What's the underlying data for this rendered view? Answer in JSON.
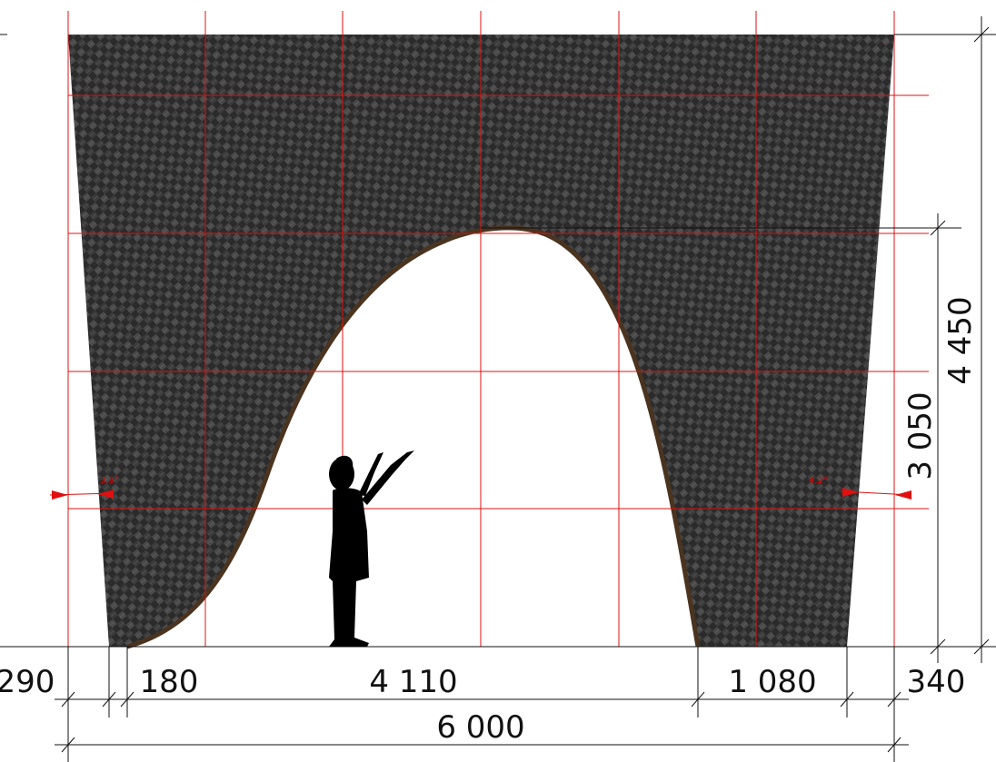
{
  "dimensions": {
    "left_offset": "290",
    "left_taper": "180",
    "opening_width": "4 110",
    "right_leg": "1 080",
    "right_offset": "340",
    "total_width": "6 000",
    "total_height": "4 450",
    "opening_height": "3 050"
  },
  "angles": {
    "left": "3,9°",
    "right": "4,2°"
  },
  "colors": {
    "panel": "#2e2e2e",
    "grid": "#e01010",
    "dimension_line": "#111111",
    "arch_edge": "#4a3420",
    "silhouette": "#000000"
  },
  "icons": {
    "figure": "child-silhouette-icon"
  }
}
